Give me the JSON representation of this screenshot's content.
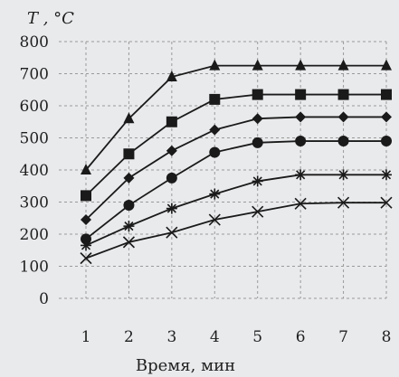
{
  "chart_data": {
    "type": "line",
    "title": "",
    "xlabel": "Время, мин",
    "ylabel": "T , °C",
    "x": [
      1,
      2,
      3,
      4,
      5,
      6,
      7,
      8
    ],
    "xlim": [
      1,
      8
    ],
    "ylim": [
      0,
      800
    ],
    "yticks": [
      0,
      100,
      200,
      300,
      400,
      500,
      600,
      700,
      800
    ],
    "grid": true,
    "legend": "none",
    "colors": {
      "line": "#1a1a1a",
      "grid": "#9a9a9a",
      "background": "#e9eaec"
    },
    "series": [
      {
        "marker": "triangle",
        "values": [
          400,
          560,
          690,
          725,
          725,
          725,
          725,
          725
        ]
      },
      {
        "marker": "square",
        "values": [
          320,
          450,
          550,
          620,
          635,
          635,
          635,
          635
        ]
      },
      {
        "marker": "diamond",
        "values": [
          245,
          375,
          460,
          525,
          560,
          565,
          565,
          565
        ]
      },
      {
        "marker": "circle",
        "values": [
          185,
          290,
          375,
          455,
          485,
          490,
          490,
          490
        ]
      },
      {
        "marker": "asterisk",
        "values": [
          165,
          225,
          280,
          325,
          365,
          385,
          385,
          385
        ]
      },
      {
        "marker": "cross",
        "values": [
          125,
          175,
          205,
          245,
          270,
          295,
          298,
          298
        ]
      }
    ]
  }
}
